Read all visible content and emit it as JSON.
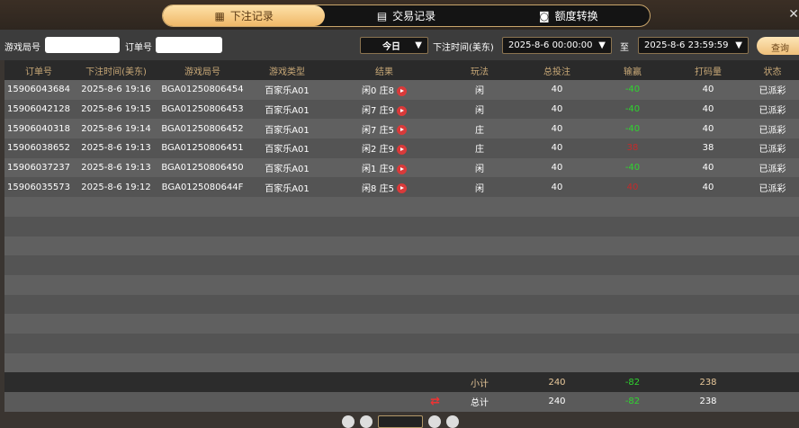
{
  "tabs": [
    {
      "label": "下注记录",
      "icon": "calendar-icon"
    },
    {
      "label": "交易记录",
      "icon": "list-icon"
    },
    {
      "label": "额度转换",
      "icon": "coins-icon"
    }
  ],
  "filters": {
    "round_label": "游戏局号",
    "round_value": "",
    "order_label": "订单号",
    "order_value": "",
    "period": "今日",
    "time_label": "下注时间(美东)",
    "start": "2025-8-6 00:00:00",
    "to": "至",
    "end": "2025-8-6 23:59:59",
    "query": "查询"
  },
  "columns": [
    "订单号",
    "下注时间(美东)",
    "游戏局号",
    "游戏类型",
    "结果",
    "玩法",
    "总投注",
    "输赢",
    "打码量",
    "状态"
  ],
  "rows": [
    [
      "15906043684",
      "2025-8-6 19:16",
      "BGA01250806454",
      "百家乐A01",
      "闲0 庄8",
      "闲",
      "40",
      "-40",
      "40",
      "已派彩"
    ],
    [
      "15906042128",
      "2025-8-6 19:15",
      "BGA01250806453",
      "百家乐A01",
      "闲7 庄9",
      "闲",
      "40",
      "-40",
      "40",
      "已派彩"
    ],
    [
      "15906040318",
      "2025-8-6 19:14",
      "BGA01250806452",
      "百家乐A01",
      "闲7 庄5",
      "庄",
      "40",
      "-40",
      "40",
      "已派彩"
    ],
    [
      "15906038652",
      "2025-8-6 19:13",
      "BGA01250806451",
      "百家乐A01",
      "闲2 庄9",
      "庄",
      "40",
      "38",
      "38",
      "已派彩"
    ],
    [
      "15906037237",
      "2025-8-6 19:13",
      "BGA01250806450",
      "百家乐A01",
      "闲1 庄9",
      "闲",
      "40",
      "-40",
      "40",
      "已派彩"
    ],
    [
      "15906035573",
      "2025-8-6 19:12",
      "BGA0125080644F",
      "百家乐A01",
      "闲8 庄5",
      "闲",
      "40",
      "40",
      "40",
      "已派彩"
    ]
  ],
  "subtotal": {
    "label": "小计",
    "bet": "240",
    "win": "-82",
    "turnover": "238"
  },
  "total": {
    "label": "总计",
    "bet": "240",
    "win": "-82",
    "turnover": "238"
  },
  "colors": {
    "accent": "#f0b868",
    "loss": "#2fd42f",
    "win": "#c42a2a"
  }
}
